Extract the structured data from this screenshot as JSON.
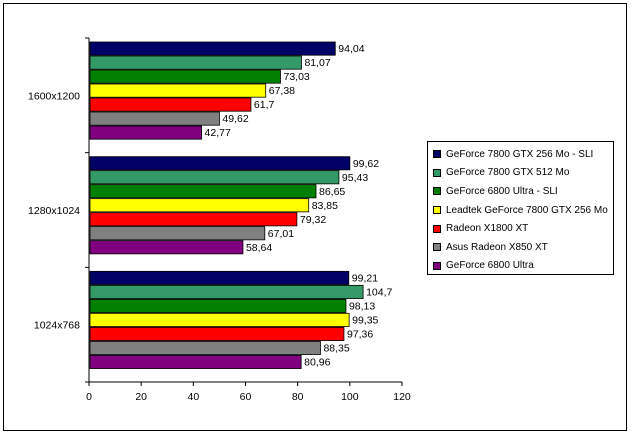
{
  "chart_data": {
    "type": "bar",
    "orientation": "horizontal",
    "categories": [
      "1600x1200",
      "1280x1024",
      "1024x768"
    ],
    "series": [
      {
        "name": "GeForce 7800 GTX 256 Mo - SLI",
        "color": "#000066",
        "values": [
          94.04,
          99.62,
          99.21
        ],
        "labels": [
          "94,04",
          "99,62",
          "99,21"
        ]
      },
      {
        "name": "GeForce 7800 GTX 512 Mo",
        "color": "#339966",
        "values": [
          81.07,
          95.43,
          104.7
        ],
        "labels": [
          "81,07",
          "95,43",
          "104,7"
        ]
      },
      {
        "name": "GeForce 6800 Ultra - SLI",
        "color": "#008000",
        "values": [
          73.03,
          86.65,
          98.13
        ],
        "labels": [
          "73,03",
          "86,65",
          "98,13"
        ]
      },
      {
        "name": "Leadtek GeForce 7800 GTX 256 Mo",
        "color": "#ffff00",
        "values": [
          67.38,
          83.85,
          99.35
        ],
        "labels": [
          "67,38",
          "83,85",
          "99,35"
        ]
      },
      {
        "name": "Radeon X1800 XT",
        "color": "#ff0000",
        "values": [
          61.7,
          79.32,
          97.36
        ],
        "labels": [
          "61,7",
          "79,32",
          "97,36"
        ]
      },
      {
        "name": "Asus Radeon X850 XT",
        "color": "#808080",
        "values": [
          49.62,
          67.01,
          88.35
        ],
        "labels": [
          "49,62",
          "67,01",
          "88,35"
        ]
      },
      {
        "name": "GeForce 6800 Ultra",
        "color": "#800080",
        "values": [
          42.77,
          58.64,
          80.96
        ],
        "labels": [
          "42,77",
          "58,64",
          "80,96"
        ]
      }
    ],
    "xlim": [
      0,
      120
    ],
    "xticks": [
      "0",
      "20",
      "40",
      "60",
      "80",
      "100",
      "120"
    ],
    "title": "",
    "xlabel": "",
    "ylabel": "",
    "grid": false,
    "legend_placement": "right"
  }
}
